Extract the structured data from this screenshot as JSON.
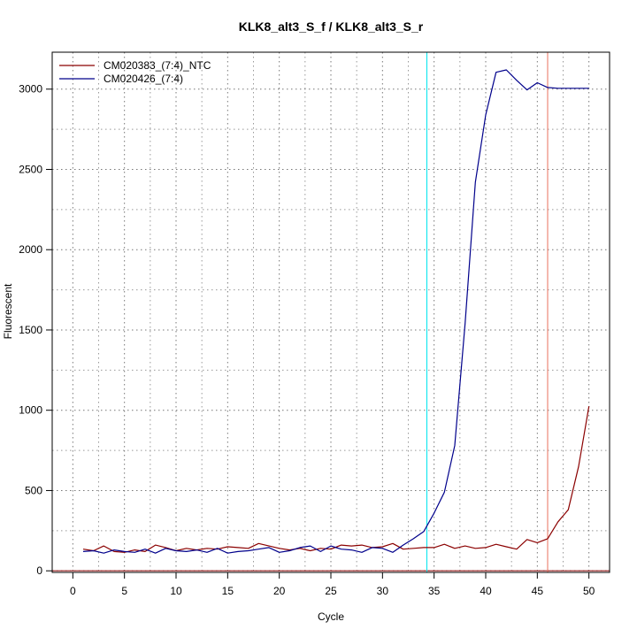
{
  "chart_data": {
    "type": "line",
    "title": "KLK8_alt3_S_f / KLK8_alt3_S_r",
    "xlabel": "Cycle",
    "ylabel": "Fluorescent",
    "xlim": [
      -2,
      52
    ],
    "ylim": [
      -10,
      3230
    ],
    "x_ticks": [
      0,
      5,
      10,
      15,
      20,
      25,
      30,
      35,
      40,
      45,
      50
    ],
    "y_ticks": [
      0,
      500,
      1000,
      1500,
      2000,
      2500,
      3000
    ],
    "grid": true,
    "minor_grid": true,
    "legend_position": "top-left",
    "x": [
      1,
      2,
      3,
      4,
      5,
      6,
      7,
      8,
      9,
      10,
      11,
      12,
      13,
      14,
      15,
      16,
      17,
      18,
      19,
      20,
      21,
      22,
      23,
      24,
      25,
      26,
      27,
      28,
      29,
      30,
      31,
      32,
      33,
      34,
      35,
      36,
      37,
      38,
      39,
      40,
      41,
      42,
      43,
      44,
      45,
      46,
      47,
      48,
      49,
      50
    ],
    "series": [
      {
        "name": "CM020383_(7:4)_NTC",
        "color": "#8b0000",
        "values": [
          135,
          125,
          155,
          120,
          115,
          130,
          120,
          160,
          145,
          125,
          140,
          130,
          140,
          135,
          150,
          145,
          140,
          170,
          155,
          140,
          130,
          140,
          125,
          140,
          135,
          160,
          155,
          160,
          145,
          150,
          170,
          135,
          140,
          145,
          145,
          165,
          140,
          155,
          140,
          145,
          165,
          150,
          135,
          195,
          175,
          200,
          305,
          380,
          650,
          1025
        ]
      },
      {
        "name": "CM020426_(7:4)",
        "color": "#00008b",
        "values": [
          120,
          125,
          110,
          130,
          120,
          115,
          135,
          110,
          140,
          125,
          120,
          130,
          115,
          140,
          110,
          120,
          125,
          135,
          145,
          115,
          125,
          145,
          155,
          120,
          155,
          135,
          130,
          115,
          145,
          140,
          115,
          160,
          200,
          245,
          360,
          490,
          780,
          1540,
          2420,
          2840,
          3105,
          3120,
          3055,
          2995,
          3040,
          3010,
          3005,
          3005,
          3005,
          3005
        ]
      }
    ],
    "vlines": [
      {
        "x": 34.3,
        "color": "#00e5ee"
      },
      {
        "x": 46.0,
        "color": "#e8705c"
      }
    ],
    "hline": {
      "y": 0,
      "color": "#8b0000"
    }
  }
}
